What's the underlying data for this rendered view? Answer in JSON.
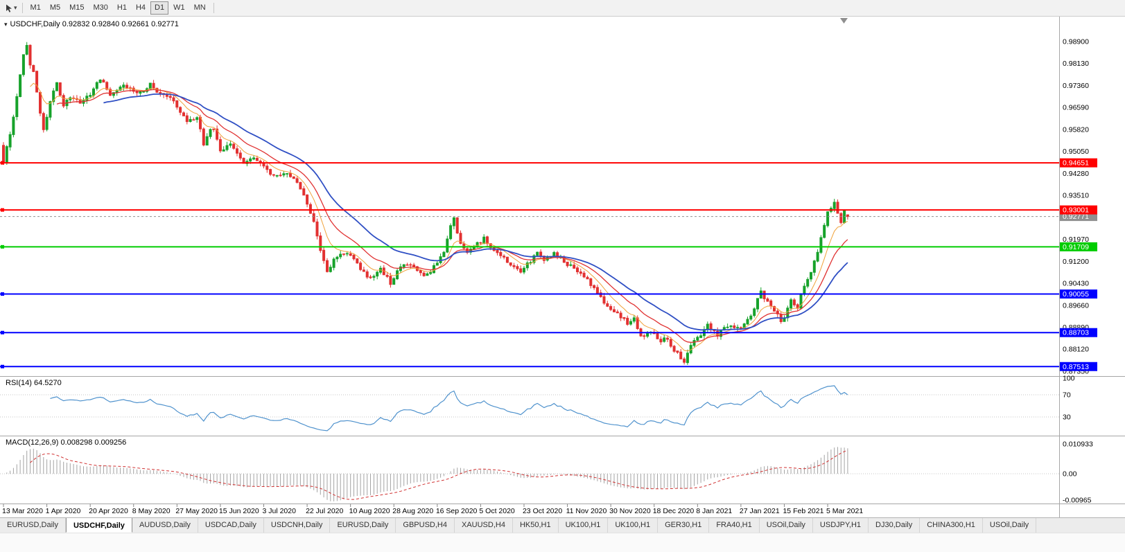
{
  "toolbar": {
    "timeframes": [
      "M1",
      "M5",
      "M15",
      "M30",
      "H1",
      "H4",
      "D1",
      "W1",
      "MN"
    ],
    "active_timeframe": "D1",
    "caret": "▾"
  },
  "chart": {
    "title_text": "USDCHF,Daily 0.92832 0.92840 0.92661 0.92771",
    "menu_icon": "▾",
    "colors": {
      "up": "#17a22b",
      "down": "#e23131",
      "bid": "#909090",
      "separator": "#a6a6a6"
    }
  },
  "tabs": {
    "active_index": 1,
    "items": [
      "EURUSD,Daily",
      "USDCHF,Daily",
      "AUDUSD,Daily",
      "USDCAD,Daily",
      "USDCNH,Daily",
      "EURUSD,Daily",
      "GBPUSD,H4",
      "XAUUSD,H4",
      "HK50,H1",
      "UK100,H1",
      "UK100,H1",
      "GER30,H1",
      "FRA40,H1",
      "USOil,Daily",
      "USDJPY,H1",
      "DJ30,Daily",
      "CHINA300,H1",
      "USOil,Daily"
    ]
  },
  "chart_data": {
    "type": "candlestick",
    "symbol": "USDCHF",
    "timeframe": "Daily",
    "last_candle": {
      "open": 0.92832,
      "high": 0.9284,
      "low": 0.92661,
      "close": 0.92771
    },
    "num_candles": 254,
    "candles_per_tick": 13,
    "x_dates": [
      "13 Mar 2020",
      "1 Apr 2020",
      "20 Apr 2020",
      "8 May 2020",
      "27 May 2020",
      "15 Jun 2020",
      "3 Jul 2020",
      "22 Jul 2020",
      "10 Aug 2020",
      "28 Aug 2020",
      "16 Sep 2020",
      "5 Oct 2020",
      "23 Oct 2020",
      "11 Nov 2020",
      "30 Nov 2020",
      "18 Dec 2020",
      "8 Jan 2021",
      "27 Jan 2021",
      "15 Feb 2021",
      "5 Mar 2021"
    ],
    "price_axis": {
      "labels": [
        "0.98900",
        "0.98130",
        "0.97360",
        "0.96590",
        "0.95820",
        "0.95050",
        "0.94280",
        "0.93510",
        "0.92740",
        "0.91970",
        "0.91200",
        "0.90430",
        "0.89660",
        "0.88890",
        "0.88120",
        "0.87350"
      ],
      "max_at_top": 0.99774,
      "min_at_bottom": 0.87228
    },
    "close_keyframes": [
      [
        0,
        0.947
      ],
      [
        2,
        0.956
      ],
      [
        4,
        0.97
      ],
      [
        6,
        0.984
      ],
      [
        7,
        0.988
      ],
      [
        8,
        0.9815
      ],
      [
        9,
        0.979
      ],
      [
        11,
        0.964
      ],
      [
        12,
        0.958
      ],
      [
        14,
        0.968
      ],
      [
        16,
        0.9745
      ],
      [
        18,
        0.966
      ],
      [
        20,
        0.97
      ],
      [
        23,
        0.9675
      ],
      [
        26,
        0.9705
      ],
      [
        29,
        0.976
      ],
      [
        32,
        0.9705
      ],
      [
        36,
        0.9745
      ],
      [
        39,
        0.971
      ],
      [
        42,
        0.9718
      ],
      [
        44,
        0.9742
      ],
      [
        47,
        0.9705
      ],
      [
        50,
        0.9688
      ],
      [
        52,
        0.9662
      ],
      [
        55,
        0.9612
      ],
      [
        58,
        0.9625
      ],
      [
        60,
        0.9532
      ],
      [
        62,
        0.9575
      ],
      [
        63,
        0.9585
      ],
      [
        65,
        0.9512
      ],
      [
        68,
        0.9525
      ],
      [
        72,
        0.9465
      ],
      [
        75,
        0.9485
      ],
      [
        78,
        0.9448
      ],
      [
        82,
        0.9415
      ],
      [
        85,
        0.9435
      ],
      [
        88,
        0.9392
      ],
      [
        91,
        0.9322
      ],
      [
        93,
        0.9252
      ],
      [
        95,
        0.9162
      ],
      [
        97,
        0.9085
      ],
      [
        99,
        0.9122
      ],
      [
        101,
        0.9152
      ],
      [
        104,
        0.9135
      ],
      [
        106,
        0.911
      ],
      [
        109,
        0.9062
      ],
      [
        111,
        0.9075
      ],
      [
        113,
        0.9092
      ],
      [
        116,
        0.9045
      ],
      [
        118,
        0.9082
      ],
      [
        120,
        0.9112
      ],
      [
        123,
        0.9095
      ],
      [
        126,
        0.9072
      ],
      [
        128,
        0.9088
      ],
      [
        130,
        0.9108
      ],
      [
        132,
        0.9155
      ],
      [
        134,
        0.924
      ],
      [
        135,
        0.9268
      ],
      [
        136,
        0.9215
      ],
      [
        137,
        0.9182
      ],
      [
        139,
        0.9155
      ],
      [
        141,
        0.917
      ],
      [
        144,
        0.9198
      ],
      [
        146,
        0.9165
      ],
      [
        149,
        0.9135
      ],
      [
        152,
        0.9112
      ],
      [
        155,
        0.9085
      ],
      [
        158,
        0.9122
      ],
      [
        160,
        0.9152
      ],
      [
        162,
        0.9128
      ],
      [
        165,
        0.9145
      ],
      [
        168,
        0.9118
      ],
      [
        171,
        0.9095
      ],
      [
        174,
        0.9065
      ],
      [
        177,
        0.9028
      ],
      [
        179,
        0.8998
      ],
      [
        181,
        0.8955
      ],
      [
        184,
        0.8932
      ],
      [
        187,
        0.8905
      ],
      [
        189,
        0.8925
      ],
      [
        191,
        0.8858
      ],
      [
        194,
        0.8868
      ],
      [
        197,
        0.8842
      ],
      [
        199,
        0.8848
      ],
      [
        201,
        0.8808
      ],
      [
        204,
        0.8768
      ],
      [
        206,
        0.8825
      ],
      [
        208,
        0.8852
      ],
      [
        211,
        0.8895
      ],
      [
        214,
        0.8865
      ],
      [
        217,
        0.8895
      ],
      [
        221,
        0.8878
      ],
      [
        224,
        0.8928
      ],
      [
        227,
        0.9012
      ],
      [
        230,
        0.8965
      ],
      [
        233,
        0.8915
      ],
      [
        234,
        0.8925
      ],
      [
        236,
        0.8978
      ],
      [
        238,
        0.8962
      ],
      [
        240,
        0.9038
      ],
      [
        242,
        0.9082
      ],
      [
        244,
        0.9148
      ],
      [
        246,
        0.9248
      ],
      [
        247,
        0.9298
      ],
      [
        249,
        0.9325
      ],
      [
        250,
        0.9286
      ],
      [
        251,
        0.9256
      ],
      [
        252,
        0.9292
      ],
      [
        253,
        0.92771
      ]
    ],
    "horizontal_lines": [
      {
        "price": 0.94651,
        "label": "0.94651",
        "color": "#ff0000",
        "width": 2
      },
      {
        "price": 0.93001,
        "label": "0.93001",
        "color": "#ff0000",
        "width": 2
      },
      {
        "price": 0.91709,
        "label": "0.91709",
        "color": "#00cc00",
        "width": 2
      },
      {
        "price": 0.90055,
        "label": "0.90055",
        "color": "#0000ff",
        "width": 2
      },
      {
        "price": 0.88703,
        "label": "0.88703",
        "color": "#0000ff",
        "width": 2
      },
      {
        "price": 0.87513,
        "label": "0.87513",
        "color": "#0000ff",
        "width": 2
      }
    ],
    "bid_line": {
      "price": 0.92771,
      "label": "0.92771",
      "color": "#909090"
    },
    "moving_averages": [
      {
        "name": "ma-fast",
        "period": 8,
        "color": "#f0a23a",
        "width": 1
      },
      {
        "name": "ma-medium",
        "period": 16,
        "color": "#e03232",
        "width": 1.3
      },
      {
        "name": "ma-slow",
        "period": 30,
        "color": "#2f4fc4",
        "width": 1.8
      }
    ],
    "rsi": {
      "label": "RSI(14) 64.5270",
      "period": 14,
      "value": "64.5270",
      "levels": [
        "100",
        "70",
        "30"
      ],
      "color": "#4f92cd"
    },
    "macd": {
      "label": "MACD(12,26,9) 0.008298 0.009256",
      "fast": 12,
      "slow": 26,
      "signal": 9,
      "axis_labels": [
        "0.010933",
        "0.00",
        "-0.00965"
      ],
      "hist_color": "#a3a3a3",
      "signal_color": "#d03030"
    }
  }
}
